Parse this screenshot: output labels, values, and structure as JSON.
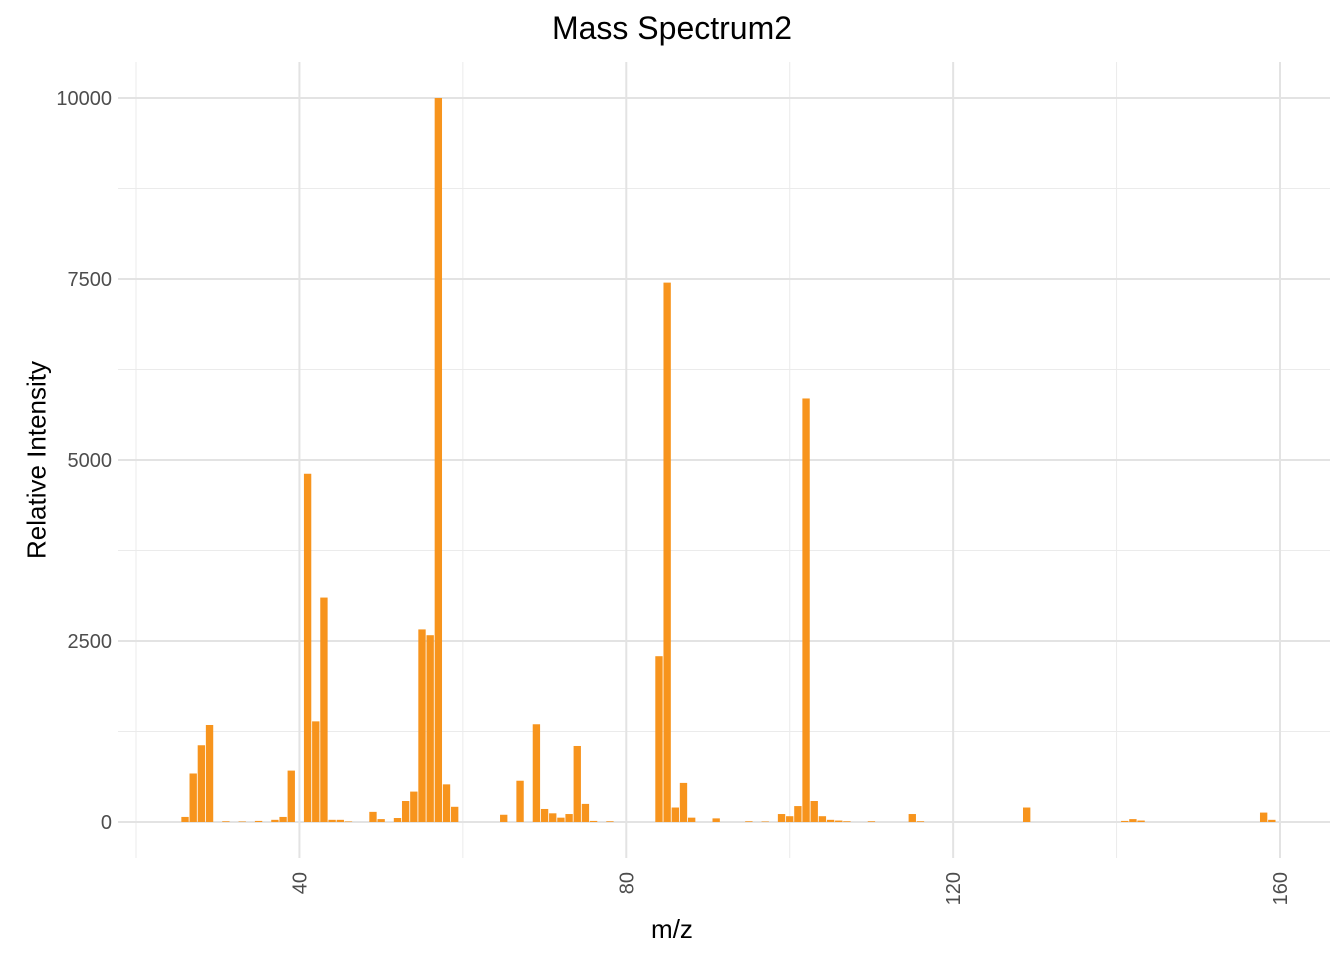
{
  "chart_data": {
    "type": "bar",
    "title": "Mass Spectrum2",
    "xlabel": "m/z",
    "ylabel": "Relative Intensity",
    "xlim": [
      20,
      162
    ],
    "ylim": [
      0,
      10000
    ],
    "xticks": [
      40,
      80,
      120,
      160
    ],
    "yticks": [
      0,
      2500,
      5000,
      7500,
      10000
    ],
    "grid": true,
    "bar_color": "#F7941D",
    "series": [
      {
        "x": [
          26,
          27,
          28,
          29,
          31,
          33,
          35,
          37,
          38,
          39,
          41,
          42,
          43,
          44,
          45,
          46,
          49,
          50,
          52,
          53,
          54,
          55,
          56,
          57,
          58,
          59,
          65,
          67,
          69,
          70,
          71,
          72,
          73,
          74,
          75,
          76,
          78,
          84,
          85,
          86,
          87,
          88,
          91,
          95,
          97,
          99,
          100,
          101,
          102,
          103,
          104,
          105,
          106,
          107,
          110,
          115,
          116,
          129,
          141,
          142,
          143,
          158,
          159
        ],
        "y": [
          70,
          670,
          1060,
          1340,
          10,
          5,
          15,
          30,
          70,
          710,
          4810,
          1390,
          3100,
          30,
          30,
          5,
          140,
          40,
          55,
          290,
          420,
          2660,
          2580,
          10000,
          520,
          210,
          100,
          570,
          1350,
          180,
          120,
          60,
          110,
          1050,
          250,
          15,
          10,
          2290,
          7450,
          200,
          540,
          60,
          50,
          10,
          5,
          110,
          80,
          220,
          5850,
          290,
          80,
          30,
          20,
          10,
          10,
          110,
          10,
          200,
          15,
          40,
          20,
          130,
          30
        ]
      }
    ]
  }
}
